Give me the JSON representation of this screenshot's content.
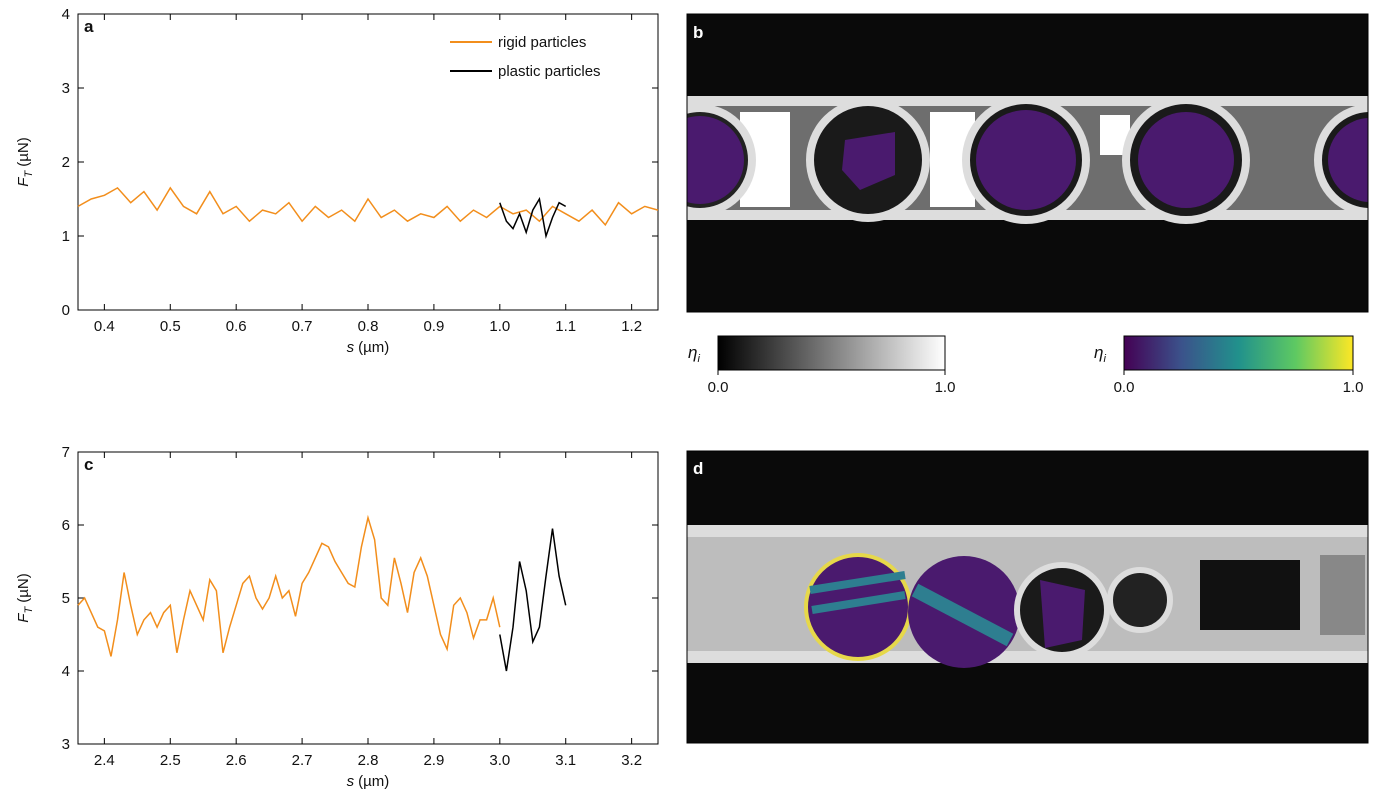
{
  "chart_data": [
    {
      "type": "line",
      "panel": "a",
      "xlabel": {
        "symbol": "s",
        "unit": "(µm)"
      },
      "ylabel": {
        "symbol": "F",
        "subscript": "T",
        "unit": "(µN)"
      },
      "xlim": [
        0.36,
        1.24
      ],
      "ylim": [
        0,
        4
      ],
      "xticks": [
        0.4,
        0.5,
        0.6,
        0.7,
        0.8,
        0.9,
        {
          "value": 1,
          "label": "1.0"
        },
        1.1,
        1.2
      ],
      "yticks": [
        0,
        1,
        2,
        3,
        4
      ],
      "legend": "top-right",
      "series": [
        {
          "name": "rigid particles",
          "color": "#f28e1c",
          "x": [
            0.36,
            0.38,
            0.4,
            0.42,
            0.44,
            0.46,
            0.48,
            0.5,
            0.52,
            0.54,
            0.56,
            0.58,
            0.6,
            0.62,
            0.64,
            0.66,
            0.68,
            0.7,
            0.72,
            0.74,
            0.76,
            0.78,
            0.8,
            0.82,
            0.84,
            0.86,
            0.88,
            0.9,
            0.92,
            0.94,
            0.96,
            0.98,
            1.0,
            1.02,
            1.04,
            1.06,
            1.08,
            1.1,
            1.12,
            1.14,
            1.16,
            1.18,
            1.2,
            1.22,
            1.24
          ],
          "values": [
            1.4,
            1.5,
            1.55,
            1.65,
            1.45,
            1.6,
            1.35,
            1.65,
            1.4,
            1.3,
            1.6,
            1.3,
            1.4,
            1.2,
            1.35,
            1.3,
            1.45,
            1.2,
            1.4,
            1.25,
            1.35,
            1.2,
            1.5,
            1.25,
            1.35,
            1.2,
            1.3,
            1.25,
            1.4,
            1.2,
            1.35,
            1.25,
            1.4,
            1.3,
            1.35,
            1.2,
            1.4,
            1.3,
            1.2,
            1.35,
            1.15,
            1.45,
            1.3,
            1.4,
            1.35
          ]
        },
        {
          "name": "plastic particles",
          "color": "#000000",
          "x": [
            1.0,
            1.01,
            1.02,
            1.03,
            1.04,
            1.05,
            1.06,
            1.07,
            1.08,
            1.09,
            1.1
          ],
          "values": [
            1.45,
            1.2,
            1.1,
            1.3,
            1.05,
            1.35,
            1.5,
            1.0,
            1.25,
            1.45,
            1.4
          ]
        }
      ]
    },
    {
      "type": "line",
      "panel": "c",
      "xlabel": {
        "symbol": "s",
        "unit": "(µm)"
      },
      "ylabel": {
        "symbol": "F",
        "subscript": "T",
        "unit": "(µN)"
      },
      "xlim": [
        2.36,
        3.24
      ],
      "ylim": [
        3,
        7
      ],
      "xticks": [
        2.4,
        2.5,
        2.6,
        2.7,
        2.8,
        2.9,
        {
          "value": 3,
          "label": "3.0"
        },
        3.1,
        3.2
      ],
      "yticks": [
        3,
        4,
        5,
        6,
        7
      ],
      "series": [
        {
          "name": "rigid particles",
          "color": "#f28e1c",
          "x": [
            2.36,
            2.37,
            2.38,
            2.39,
            2.4,
            2.41,
            2.42,
            2.43,
            2.44,
            2.45,
            2.46,
            2.47,
            2.48,
            2.49,
            2.5,
            2.51,
            2.52,
            2.53,
            2.54,
            2.55,
            2.56,
            2.57,
            2.58,
            2.59,
            2.6,
            2.61,
            2.62,
            2.63,
            2.64,
            2.65,
            2.66,
            2.67,
            2.68,
            2.69,
            2.7,
            2.71,
            2.72,
            2.73,
            2.74,
            2.75,
            2.76,
            2.77,
            2.78,
            2.79,
            2.8,
            2.81,
            2.82,
            2.83,
            2.84,
            2.85,
            2.86,
            2.87,
            2.88,
            2.89,
            2.9,
            2.91,
            2.92,
            2.93,
            2.94,
            2.95,
            2.96,
            2.97,
            2.98,
            2.99,
            3.0
          ],
          "values": [
            4.9,
            5.0,
            4.8,
            4.6,
            4.55,
            4.2,
            4.7,
            5.35,
            4.9,
            4.5,
            4.7,
            4.8,
            4.6,
            4.8,
            4.9,
            4.25,
            4.7,
            5.1,
            4.9,
            4.7,
            5.25,
            5.1,
            4.25,
            4.6,
            4.9,
            5.2,
            5.3,
            5.0,
            4.85,
            5.0,
            5.3,
            5.0,
            5.1,
            4.75,
            5.2,
            5.35,
            5.55,
            5.75,
            5.7,
            5.5,
            5.35,
            5.2,
            5.15,
            5.7,
            6.1,
            5.8,
            5.0,
            4.9,
            5.55,
            5.2,
            4.8,
            5.35,
            5.55,
            5.3,
            4.9,
            4.5,
            4.3,
            4.9,
            5.0,
            4.8,
            4.45,
            4.7,
            4.7,
            5.0,
            4.6
          ]
        },
        {
          "name": "plastic particles",
          "color": "#000000",
          "x": [
            3.0,
            3.01,
            3.02,
            3.03,
            3.04,
            3.05,
            3.06,
            3.07,
            3.08,
            3.09,
            3.1
          ],
          "values": [
            4.5,
            4.0,
            4.6,
            5.5,
            5.1,
            4.4,
            4.6,
            5.3,
            5.95,
            5.3,
            4.9
          ]
        }
      ]
    }
  ],
  "images": [
    {
      "panel": "b",
      "colorbars": [
        {
          "label": {
            "symbol": "η",
            "subscript": "i"
          },
          "clim": [
            0,
            1
          ],
          "ticks": [
            {
              "value": 0,
              "label": "0.0"
            },
            {
              "value": 1,
              "label": "1.0"
            }
          ],
          "colormap": "gray"
        },
        {
          "label": {
            "symbol": "η",
            "subscript": "i"
          },
          "clim": [
            0,
            1
          ],
          "ticks": [
            {
              "value": 0,
              "label": "0.0"
            },
            {
              "value": 1,
              "label": "1.0"
            }
          ],
          "colormap": "viridis"
        }
      ]
    },
    {
      "panel": "d"
    }
  ]
}
